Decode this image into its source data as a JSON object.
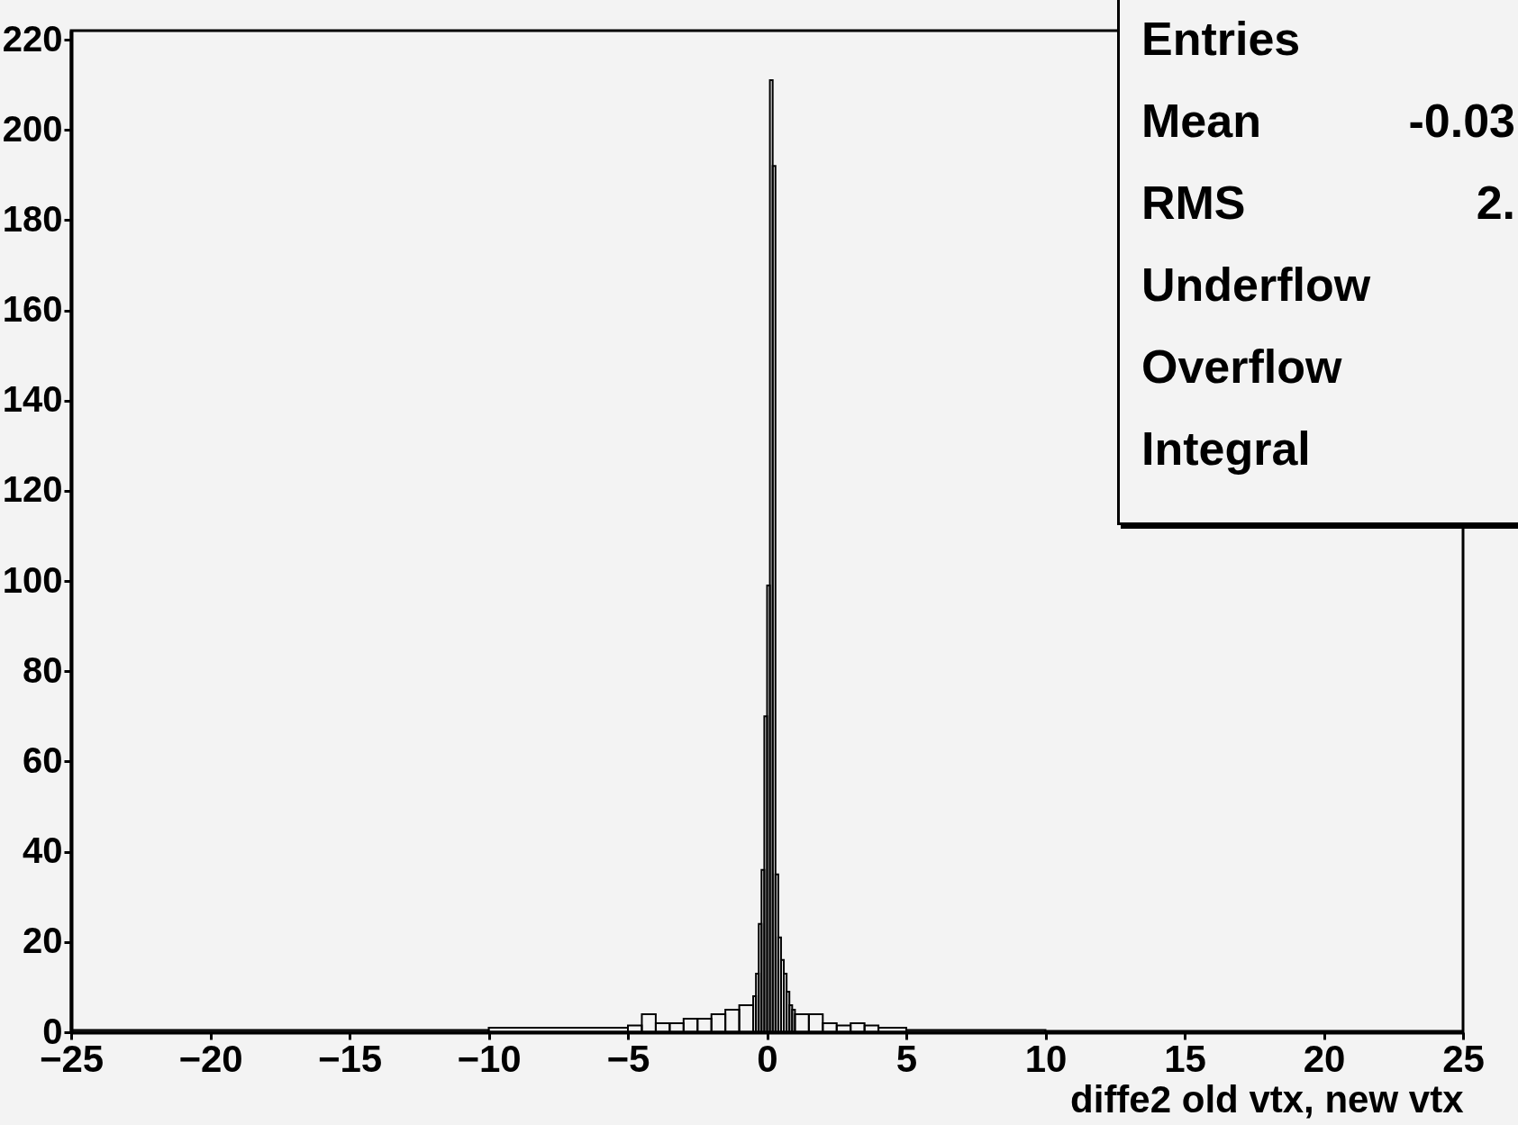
{
  "chart_data": {
    "type": "histogram",
    "bins": [
      -25,
      -10,
      -5,
      -4.5,
      -4,
      -3.5,
      -3,
      -2.5,
      -2,
      -1.5,
      -1,
      -0.5,
      -0.4,
      -0.3,
      -0.2,
      -0.1,
      0,
      0.1,
      0.2,
      0.3,
      0.4,
      0.5,
      0.6,
      0.7,
      0.8,
      0.9,
      1,
      1.5,
      2,
      2.5,
      3,
      3.5,
      4,
      5,
      10,
      25
    ],
    "values": [
      0.5,
      1,
      1.5,
      4,
      2,
      2,
      3,
      3,
      4,
      5,
      6,
      8,
      13,
      24,
      36,
      70,
      99,
      211,
      192,
      35,
      21,
      16,
      13,
      9,
      6,
      5,
      4,
      4,
      2,
      1.5,
      2,
      1.5,
      1,
      0.5,
      0.3
    ],
    "color": "#000000",
    "xlabel": "diffe2 old vtx, new vtx",
    "xlim": [
      -25,
      25
    ],
    "xticks": [
      -25,
      -20,
      -15,
      -10,
      -5,
      0,
      5,
      10,
      15,
      20,
      25
    ],
    "ylim": [
      0,
      222
    ],
    "yticks": [
      0,
      20,
      40,
      60,
      80,
      100,
      120,
      140,
      160,
      180,
      200,
      220
    ],
    "annotations": [
      "Entries",
      "Mean",
      "-0.03",
      "RMS",
      "2.",
      "Underflow",
      "Overflow",
      "Integral"
    ]
  }
}
